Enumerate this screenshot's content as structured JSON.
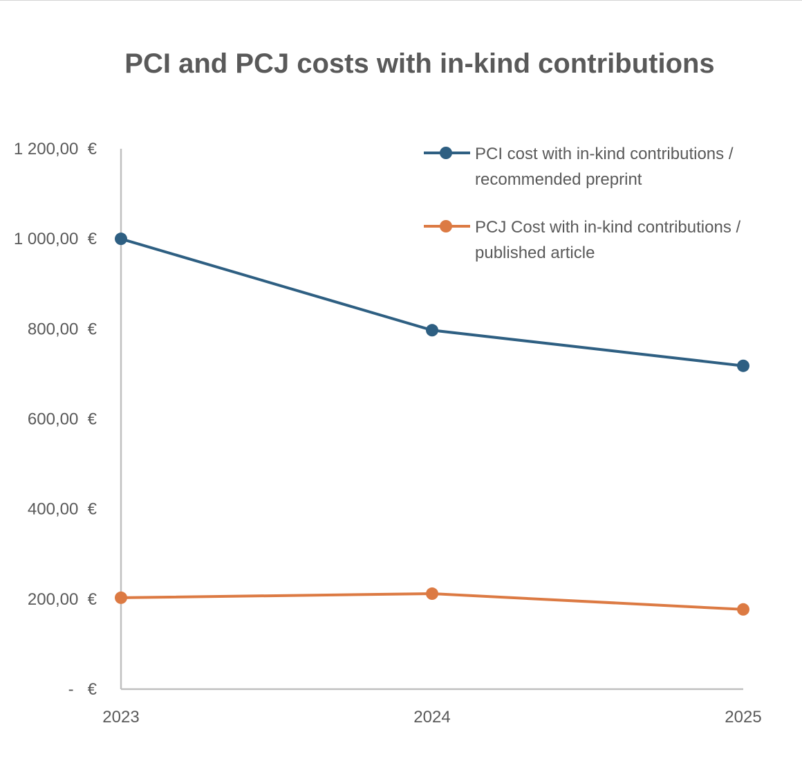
{
  "chart_data": {
    "type": "line",
    "title": "PCI and PCJ costs with in-kind contributions",
    "xlabel": "",
    "ylabel": "",
    "categories": [
      "2023",
      "2024",
      "2025"
    ],
    "ylim": [
      0,
      1200
    ],
    "yticks": [
      0,
      200,
      400,
      600,
      800,
      1000,
      1200
    ],
    "ytick_labels": [
      "-   €",
      "200,00  €",
      "400,00  €",
      "600,00  €",
      "800,00  €",
      "1 000,00  €",
      "1 200,00  €"
    ],
    "grid": false,
    "legend_position": "top-right",
    "series": [
      {
        "name": "PCI cost with in-kind contributions / recommended preprint",
        "legend_lines": [
          "PCI cost with in-kind contributions /",
          "recommended preprint"
        ],
        "color": "#2E5F82",
        "values": [
          1000,
          797,
          718
        ]
      },
      {
        "name": "PCJ Cost with in-kind contributions / published article",
        "legend_lines": [
          "PCJ Cost with in-kind contributions /",
          "published article"
        ],
        "color": "#DC7A43",
        "values": [
          203,
          212,
          177
        ]
      }
    ],
    "axis_color": "#BFBFBF",
    "text_color": "#595959"
  }
}
